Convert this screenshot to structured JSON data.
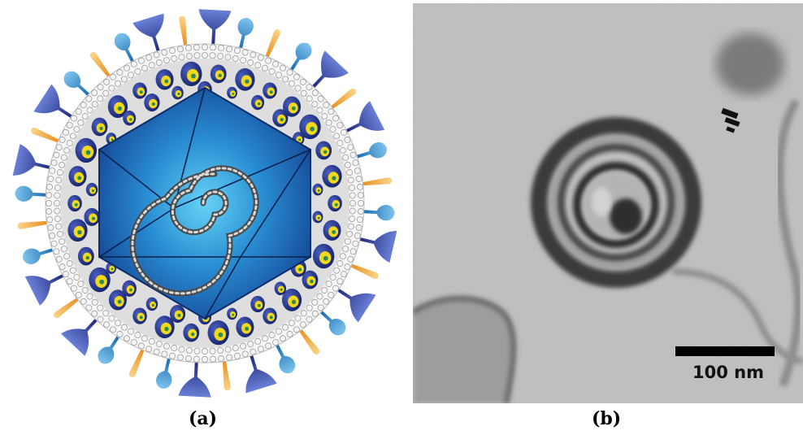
{
  "panels": [
    {
      "label": "(a)"
    },
    {
      "label": "(b)",
      "scale_bar": "100 nm"
    }
  ],
  "colors": {
    "capsid": "#1763b0",
    "capsid_center": "#56c7f0",
    "tegument": "#dcdcdc",
    "membrane_bead": "#f4f4f4",
    "glycoprotein_dark": "#2b3f96",
    "glycoprotein_light": "#2f8fd0",
    "glycoprotein_orange": "#f2a93a",
    "tegument_protein": "#1d2f86",
    "tegument_protein_core": "#f2d81a"
  },
  "icons": [
    "virion-diagram",
    "micrograph-image"
  ]
}
